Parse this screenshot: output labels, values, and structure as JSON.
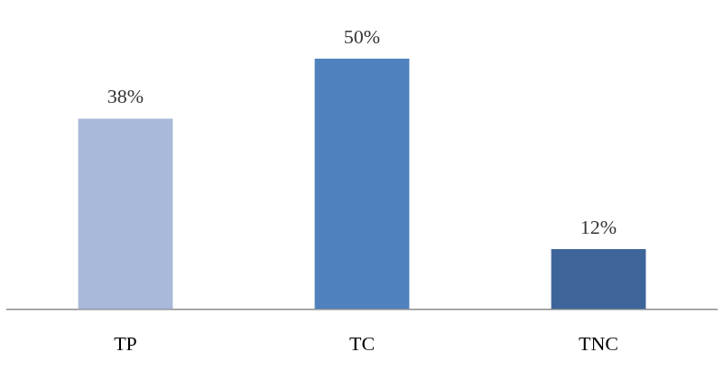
{
  "chart_data": {
    "type": "bar",
    "categories": [
      "TP",
      "TC",
      "TNC"
    ],
    "values": [
      38,
      50,
      12
    ],
    "value_labels": [
      "38%",
      "50%",
      "12%"
    ],
    "colors": [
      "#a9b9da",
      "#4f81bd",
      "#3e6599"
    ],
    "ylim": [
      0,
      50
    ],
    "grid": false,
    "data_labels": true,
    "tick_labels": "x"
  }
}
